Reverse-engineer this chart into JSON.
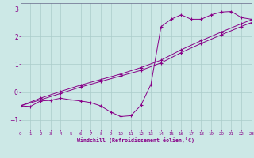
{
  "background_color": "#cce8e6",
  "grid_color": "#aaccca",
  "line_color": "#880088",
  "xlim": [
    0,
    23
  ],
  "ylim": [
    -1.35,
    3.2
  ],
  "xticks": [
    0,
    1,
    2,
    3,
    4,
    5,
    6,
    7,
    8,
    9,
    10,
    11,
    12,
    13,
    14,
    15,
    16,
    17,
    18,
    19,
    20,
    21,
    22,
    23
  ],
  "yticks": [
    -1,
    0,
    1,
    2,
    3
  ],
  "xlabel": "Windchill (Refroidissement éolien,°C)",
  "series1_x": [
    0,
    1,
    2,
    3,
    4,
    5,
    6,
    7,
    8,
    9,
    10,
    11,
    12,
    13,
    14,
    15,
    16,
    17,
    18,
    19,
    20,
    21,
    22,
    23
  ],
  "series1_y": [
    -0.5,
    -0.52,
    -0.32,
    -0.3,
    -0.22,
    -0.28,
    -0.32,
    -0.38,
    -0.5,
    -0.72,
    -0.88,
    -0.85,
    -0.48,
    0.28,
    2.35,
    2.62,
    2.78,
    2.62,
    2.62,
    2.78,
    2.88,
    2.9,
    2.68,
    2.62
  ],
  "series2_x": [
    0,
    2,
    4,
    6,
    8,
    10,
    12,
    14,
    16,
    18,
    20,
    22,
    23
  ],
  "series2_y": [
    -0.5,
    -0.28,
    -0.05,
    0.18,
    0.38,
    0.58,
    0.78,
    1.05,
    1.42,
    1.75,
    2.06,
    2.36,
    2.5
  ],
  "series3_x": [
    0,
    2,
    4,
    6,
    8,
    10,
    12,
    14,
    16,
    18,
    20,
    22,
    23
  ],
  "series3_y": [
    -0.5,
    -0.22,
    0.02,
    0.25,
    0.45,
    0.65,
    0.88,
    1.15,
    1.52,
    1.85,
    2.16,
    2.46,
    2.6
  ]
}
